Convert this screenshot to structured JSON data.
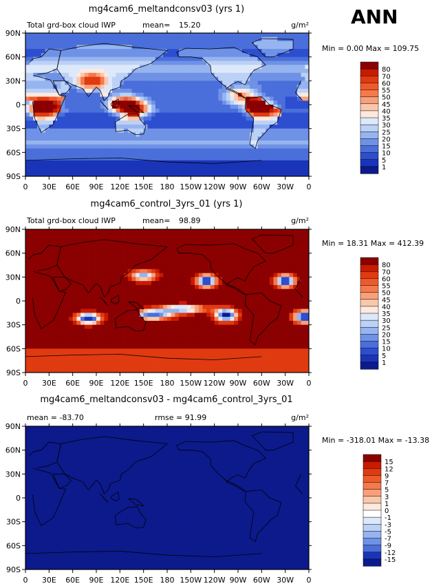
{
  "season": "ANN",
  "colors": {
    "background": "#ffffff",
    "ocean_low": "#1d3dc7",
    "land_high": "#a11c0b",
    "diff_field": "#0c1a8c"
  },
  "chart_data": [
    {
      "type": "heatmap",
      "title": "mg4cam6_meltandconsv03 (yrs 1)",
      "subtitle_left": "Total grd-box cloud IWP",
      "mean_label": "mean=",
      "mean_value": "15.20",
      "units": "g/m²",
      "min_max_text": "Min =    0.00 Max = 109.75",
      "x_ticks": [
        "0",
        "30E",
        "60E",
        "90E",
        "120E",
        "150E",
        "180",
        "150W",
        "120W",
        "90W",
        "60W",
        "30W",
        "0"
      ],
      "y_ticks": [
        "90N",
        "60N",
        "30N",
        "0",
        "30S",
        "60S",
        "90S"
      ],
      "xlim": [
        0,
        360
      ],
      "ylim": [
        -90,
        90
      ],
      "colorbar_labels": [
        "80",
        "70",
        "60",
        "55",
        "50",
        "45",
        "40",
        "35",
        "30",
        "25",
        "20",
        "15",
        "10",
        "5",
        "1"
      ],
      "colorbar_colors": [
        "#8b0000",
        "#c91b00",
        "#e03a10",
        "#ef5a2a",
        "#f47a4c",
        "#f8a07c",
        "#fbc7aa",
        "#fde9dd",
        "#dde8fb",
        "#bcd1f6",
        "#96b4ef",
        "#6f92e6",
        "#4a6fdb",
        "#2c4ecf",
        "#1a34b8",
        "#0c1a8c"
      ],
      "field": "meltandconsv"
    },
    {
      "type": "heatmap",
      "title": "mg4cam6_control_3yrs_01 (yrs 1)",
      "subtitle_left": "Total grd-box cloud IWP",
      "mean_label": "mean=",
      "mean_value": "98.89",
      "units": "g/m²",
      "min_max_text": "Min =  18.31 Max = 412.39",
      "x_ticks": [
        "0",
        "30E",
        "60E",
        "90E",
        "120E",
        "150E",
        "180",
        "150W",
        "120W",
        "90W",
        "60W",
        "30W",
        "0"
      ],
      "y_ticks": [
        "90N",
        "60N",
        "30N",
        "0",
        "30S",
        "60S",
        "90S"
      ],
      "xlim": [
        0,
        360
      ],
      "ylim": [
        -90,
        90
      ],
      "colorbar_labels": [
        "80",
        "70",
        "60",
        "55",
        "50",
        "45",
        "40",
        "35",
        "30",
        "25",
        "20",
        "15",
        "10",
        "5",
        "1"
      ],
      "colorbar_colors": [
        "#8b0000",
        "#c91b00",
        "#e03a10",
        "#ef5a2a",
        "#f47a4c",
        "#f8a07c",
        "#fbc7aa",
        "#fde9dd",
        "#dde8fb",
        "#bcd1f6",
        "#96b4ef",
        "#6f92e6",
        "#4a6fdb",
        "#2c4ecf",
        "#1a34b8",
        "#0c1a8c"
      ],
      "field": "control"
    },
    {
      "type": "heatmap",
      "title": "mg4cam6_meltandconsv03 - mg4cam6_control_3yrs_01",
      "subtitle_left": "mean = -83.70",
      "rmse_text": "rmse =  91.99",
      "units": "g/m²",
      "min_max_text": "Min = -318.01 Max = -13.38",
      "x_ticks": [
        "0",
        "30E",
        "60E",
        "90E",
        "120E",
        "150E",
        "180",
        "150W",
        "120W",
        "90W",
        "60W",
        "30W",
        "0"
      ],
      "y_ticks": [
        "90N",
        "60N",
        "30N",
        "0",
        "30S",
        "60S",
        "90S"
      ],
      "xlim": [
        0,
        360
      ],
      "ylim": [
        -90,
        90
      ],
      "colorbar_labels": [
        "15",
        "12",
        "9",
        "7",
        "5",
        "3",
        "1",
        "0",
        "-1",
        "-3",
        "-5",
        "-7",
        "-9",
        "-12",
        "-15"
      ],
      "colorbar_colors": [
        "#8b0000",
        "#c91b00",
        "#e03a10",
        "#ef5a2a",
        "#f47a4c",
        "#f8a07c",
        "#fbc7aa",
        "#fde9dd",
        "#ffffff",
        "#dde8fb",
        "#bcd1f6",
        "#96b4ef",
        "#6f92e6",
        "#4a6fdb",
        "#1a34b8",
        "#0c1a8c"
      ],
      "field": "diff"
    }
  ]
}
